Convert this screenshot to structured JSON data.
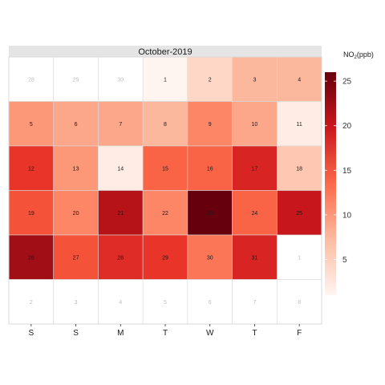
{
  "chart_data": {
    "type": "heatmap",
    "title": "October-2019",
    "legend": {
      "title_main": "NO",
      "title_sub": "2",
      "title_unit": "(ppb)",
      "ticks": [
        5,
        10,
        15,
        20,
        25
      ],
      "range": [
        1,
        26
      ],
      "color_low": "#fff5f0",
      "color_high": "#67000d",
      "placement": "right"
    },
    "weekdays": [
      "S",
      "S",
      "M",
      "T",
      "W",
      "T",
      "F"
    ],
    "weeks": [
      [
        {
          "day": 28,
          "in_month": false
        },
        {
          "day": 29,
          "in_month": false
        },
        {
          "day": 30,
          "in_month": false
        },
        {
          "day": 1,
          "in_month": true,
          "value": 1
        },
        {
          "day": 2,
          "in_month": true,
          "value": 4
        },
        {
          "day": 3,
          "in_month": true,
          "value": 6
        },
        {
          "day": 4,
          "in_month": true,
          "value": 6
        }
      ],
      [
        {
          "day": 5,
          "in_month": true,
          "value": 8
        },
        {
          "day": 6,
          "in_month": true,
          "value": 7
        },
        {
          "day": 7,
          "in_month": true,
          "value": 7
        },
        {
          "day": 8,
          "in_month": true,
          "value": 6
        },
        {
          "day": 9,
          "in_month": true,
          "value": 9
        },
        {
          "day": 10,
          "in_month": true,
          "value": 7
        },
        {
          "day": 11,
          "in_month": true,
          "value": 2
        }
      ],
      [
        {
          "day": 12,
          "in_month": true,
          "value": 14
        },
        {
          "day": 13,
          "in_month": true,
          "value": 8
        },
        {
          "day": 14,
          "in_month": true,
          "value": 2
        },
        {
          "day": 15,
          "in_month": true,
          "value": 11
        },
        {
          "day": 16,
          "in_month": true,
          "value": 11
        },
        {
          "day": 17,
          "in_month": true,
          "value": 16
        },
        {
          "day": 18,
          "in_month": true,
          "value": 5
        }
      ],
      [
        {
          "day": 19,
          "in_month": true,
          "value": 12
        },
        {
          "day": 20,
          "in_month": true,
          "value": 9
        },
        {
          "day": 21,
          "in_month": true,
          "value": 20
        },
        {
          "day": 22,
          "in_month": true,
          "value": 9
        },
        {
          "day": 23,
          "in_month": true,
          "value": 26
        },
        {
          "day": 24,
          "in_month": true,
          "value": 11
        },
        {
          "day": 25,
          "in_month": true,
          "value": 18
        }
      ],
      [
        {
          "day": 26,
          "in_month": true,
          "value": 22
        },
        {
          "day": 27,
          "in_month": true,
          "value": 12
        },
        {
          "day": 28,
          "in_month": true,
          "value": 15
        },
        {
          "day": 29,
          "in_month": true,
          "value": 14
        },
        {
          "day": 30,
          "in_month": true,
          "value": 10
        },
        {
          "day": 31,
          "in_month": true,
          "value": 16
        },
        {
          "day": 1,
          "in_month": false
        }
      ],
      [
        {
          "day": 2,
          "in_month": false
        },
        {
          "day": 3,
          "in_month": false
        },
        {
          "day": 4,
          "in_month": false
        },
        {
          "day": 5,
          "in_month": false
        },
        {
          "day": 6,
          "in_month": false
        },
        {
          "day": 7,
          "in_month": false
        },
        {
          "day": 8,
          "in_month": false
        }
      ]
    ]
  }
}
